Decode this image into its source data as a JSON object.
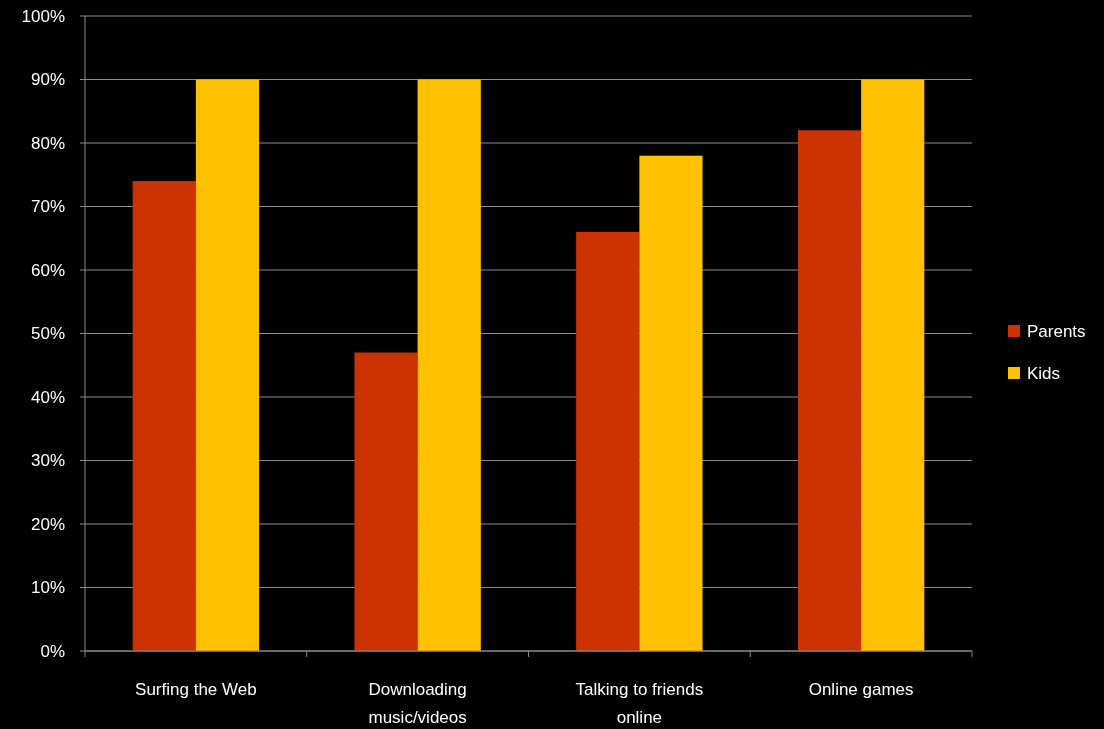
{
  "chart_data": {
    "type": "bar",
    "categories": [
      "Surfing the Web",
      "Downloading music/videos",
      "Talking to friends online",
      "Online games"
    ],
    "series": [
      {
        "name": "Parents",
        "color": "#cc3300",
        "values": [
          74,
          47,
          66,
          82
        ]
      },
      {
        "name": "Kids",
        "color": "#ffc000",
        "values": [
          90,
          90,
          78,
          90
        ]
      }
    ],
    "ylim": [
      0,
      100
    ],
    "yticks": [
      {
        "value": 0,
        "label": "0%"
      },
      {
        "value": 10,
        "label": "10%"
      },
      {
        "value": 20,
        "label": "20%"
      },
      {
        "value": 30,
        "label": "30%"
      },
      {
        "value": 40,
        "label": "40%"
      },
      {
        "value": 50,
        "label": "50%"
      },
      {
        "value": 60,
        "label": "60%"
      },
      {
        "value": 70,
        "label": "70%"
      },
      {
        "value": 80,
        "label": "80%"
      },
      {
        "value": 90,
        "label": "90%"
      },
      {
        "value": 100,
        "label": "100%"
      }
    ],
    "grid": "y",
    "legend": "right"
  }
}
